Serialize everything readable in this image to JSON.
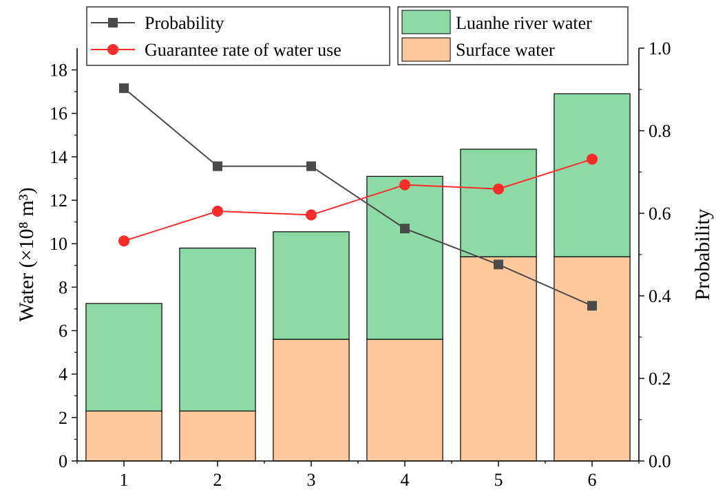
{
  "chart_data": {
    "type": "bar",
    "categories": [
      "1",
      "2",
      "3",
      "4",
      "5",
      "6"
    ],
    "stacked_series": [
      {
        "name": "Surface water",
        "values": [
          2.3,
          2.3,
          5.6,
          5.6,
          9.4,
          9.4
        ],
        "color": "#fcc89c"
      },
      {
        "name": "Luanhe river water",
        "values": [
          4.95,
          7.5,
          4.95,
          7.5,
          4.95,
          7.5
        ],
        "color": "#8edaa6"
      }
    ],
    "line_series": [
      {
        "name": "Probability",
        "values": [
          0.903,
          0.714,
          0.714,
          0.563,
          0.476,
          0.376
        ],
        "color": "#4a4a4a",
        "marker": "square",
        "axis": "right"
      },
      {
        "name": "Guarantee rate of water use",
        "values": [
          0.533,
          0.605,
          0.596,
          0.669,
          0.659,
          0.731
        ],
        "color": "#ff2a2a",
        "marker": "circle",
        "axis": "right"
      }
    ],
    "ylabel_left": "Water (×10⁸ m³)",
    "ylabel_right": "Probability",
    "xlabel": "",
    "ylim_left": [
      0,
      19
    ],
    "ylim_right": [
      0,
      1.0
    ],
    "yticks_left": [
      "0",
      "2",
      "4",
      "6",
      "8",
      "10",
      "12",
      "14",
      "16",
      "18"
    ],
    "yticks_right": [
      "0.0",
      "0.2",
      "0.4",
      "0.6",
      "0.8",
      "1.0"
    ],
    "legend_left": [
      "Probability",
      "Guarantee rate of water use"
    ],
    "legend_right": [
      "Luanhe river water",
      "Surface water"
    ],
    "legend_placement": "top"
  }
}
